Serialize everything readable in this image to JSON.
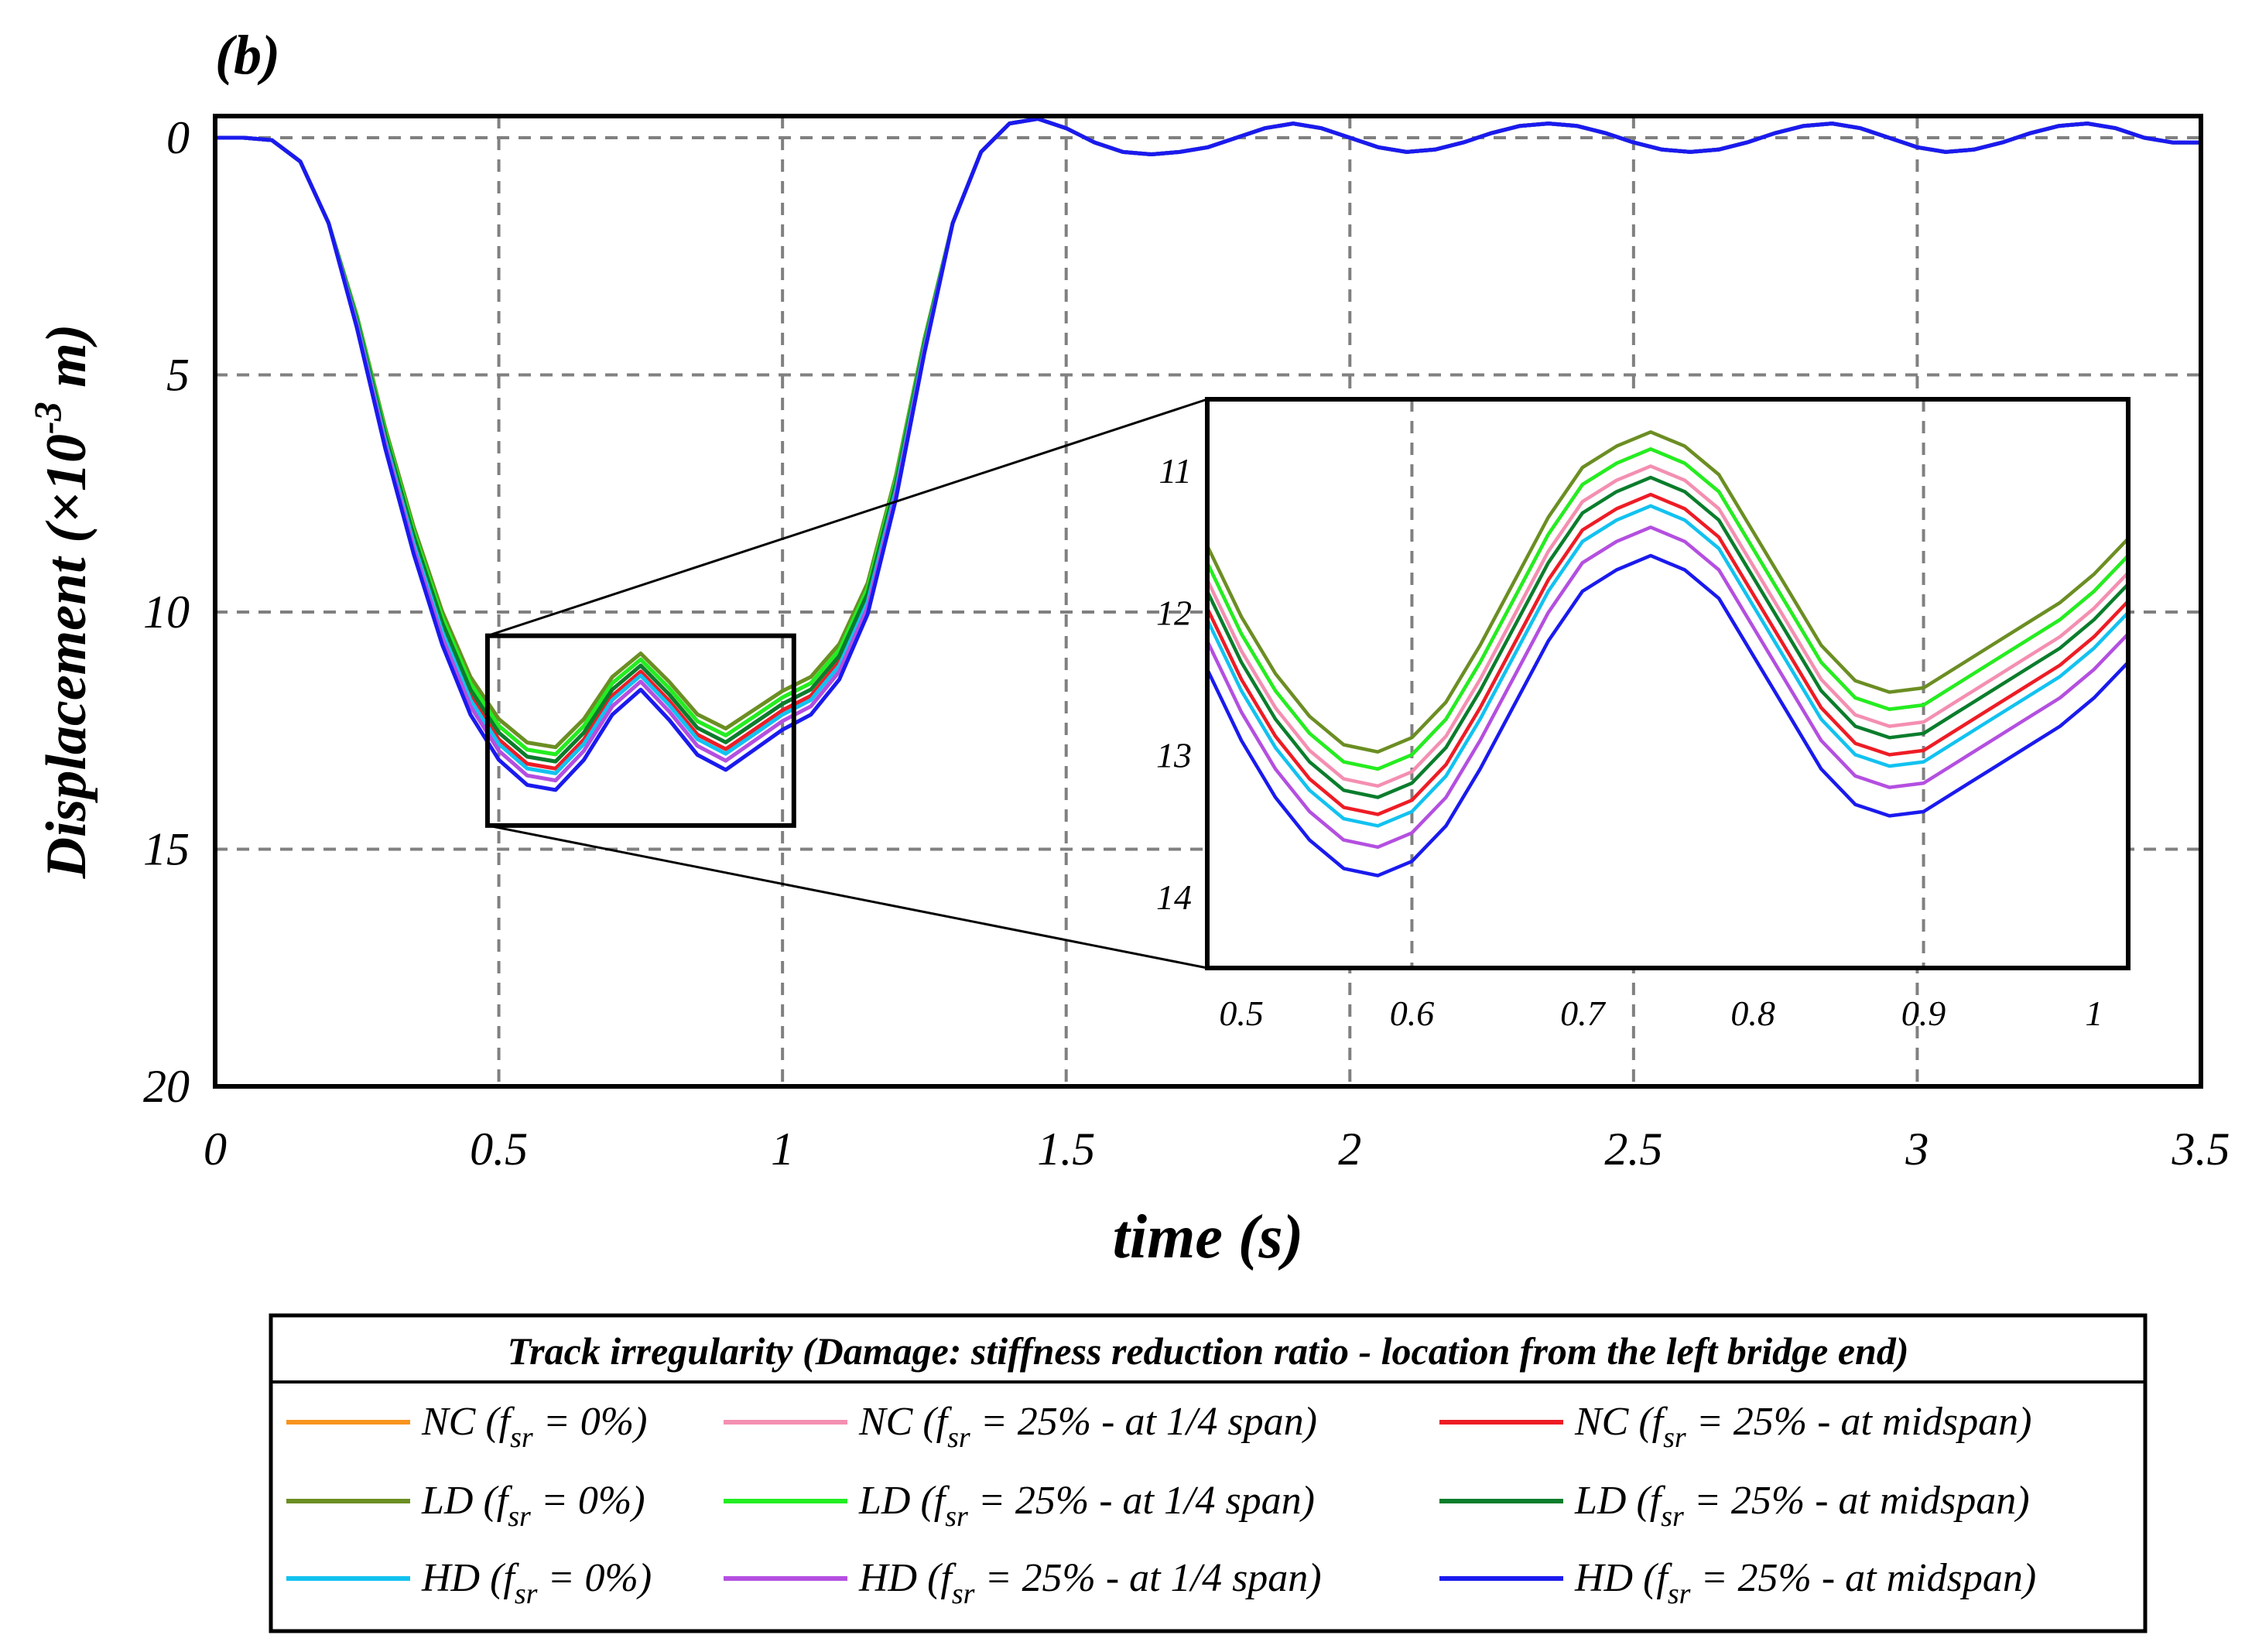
{
  "panel_label": "(b)",
  "chart_data": {
    "type": "line",
    "title": "",
    "xlabel": "time (s)",
    "ylabel": "Displacement (×10",
    "ylabel_exp": "-3",
    "ylabel_unit": " m)",
    "xlim": [
      0,
      3.5
    ],
    "ylim": [
      0,
      20
    ],
    "y_inverted": true,
    "grid": true,
    "x_ticks": [
      "0",
      "0.5",
      "1",
      "1.5",
      "2",
      "2.5",
      "3",
      "3.5"
    ],
    "y_ticks": [
      "0",
      "5",
      "10",
      "15",
      "20"
    ],
    "base_curve": {
      "x": [
        0,
        0.05,
        0.1,
        0.15,
        0.2,
        0.25,
        0.3,
        0.35,
        0.4,
        0.45,
        0.5,
        0.55,
        0.6,
        0.65,
        0.7,
        0.75,
        0.8,
        0.85,
        0.9,
        0.95,
        1.0,
        1.05,
        1.1,
        1.15,
        1.2,
        1.25,
        1.3,
        1.35,
        1.4,
        1.45,
        1.5,
        1.55,
        1.6,
        1.65,
        1.7,
        1.75,
        1.8,
        1.85,
        1.9,
        1.95,
        2.0,
        2.05,
        2.1,
        2.15,
        2.2,
        2.25,
        2.3,
        2.35,
        2.4,
        2.45,
        2.5,
        2.55,
        2.6,
        2.65,
        2.7,
        2.75,
        2.8,
        2.85,
        2.9,
        2.95,
        3.0,
        3.05,
        3.1,
        3.15,
        3.2,
        3.25,
        3.3,
        3.35,
        3.4,
        3.45,
        3.5
      ],
      "y": [
        0,
        0,
        0.05,
        0.5,
        1.8,
        3.8,
        6.2,
        8.3,
        10.1,
        11.5,
        12.4,
        12.9,
        13.0,
        12.4,
        11.5,
        11.0,
        11.6,
        12.3,
        12.6,
        12.2,
        11.8,
        11.5,
        10.8,
        9.5,
        7.2,
        4.3,
        1.8,
        0.3,
        -0.3,
        -0.4,
        -0.2,
        0.1,
        0.3,
        0.35,
        0.3,
        0.2,
        0.0,
        -0.2,
        -0.3,
        -0.2,
        0.0,
        0.2,
        0.3,
        0.25,
        0.1,
        -0.1,
        -0.25,
        -0.3,
        -0.25,
        -0.1,
        0.1,
        0.25,
        0.3,
        0.25,
        0.1,
        -0.1,
        -0.25,
        -0.3,
        -0.2,
        0.0,
        0.2,
        0.3,
        0.25,
        0.1,
        -0.1,
        -0.25,
        -0.3,
        -0.2,
        0.0,
        0.1,
        0.1
      ]
    },
    "series": [
      {
        "name": "NC (f",
        "sub": "sr",
        "suffix": " = 0%)",
        "color": "#f7941d",
        "offset": 0.0
      },
      {
        "name": "NC (f",
        "sub": "sr",
        "suffix": " = 25% - at 1/4 span)",
        "color": "#f48fb1",
        "offset": 0.15
      },
      {
        "name": "NC (f",
        "sub": "sr",
        "suffix": " = 25% - at midspan)",
        "color": "#ee1c25",
        "offset": 0.3
      },
      {
        "name": "LD (f",
        "sub": "sr",
        "suffix": " = 0%)",
        "color": "#6b8e23",
        "offset": -0.15
      },
      {
        "name": "LD (f",
        "sub": "sr",
        "suffix": " = 25% - at 1/4 span)",
        "color": "#22ee22",
        "offset": 0.0
      },
      {
        "name": "LD (f",
        "sub": "sr",
        "suffix": " = 25% - at midspan)",
        "color": "#0a7d2c",
        "offset": 0.15
      },
      {
        "name": "HD (f",
        "sub": "sr",
        "suffix": " = 0%)",
        "color": "#12c2f0",
        "offset": 0.4
      },
      {
        "name": "HD (f",
        "sub": "sr",
        "suffix": " = 25% - at 1/4 span)",
        "color": "#b44fe0",
        "offset": 0.55
      },
      {
        "name": "HD (f",
        "sub": "sr",
        "suffix": " = 25% - at midspan)",
        "color": "#1a1aee",
        "offset": 0.75
      }
    ],
    "zoom_box": {
      "x": [
        0.48,
        1.02
      ],
      "y": [
        10.5,
        14.5
      ]
    },
    "inset": {
      "xlim": [
        0.48,
        1.02
      ],
      "ylim": [
        10.5,
        14.5
      ],
      "x_ticks": [
        "0.5",
        "0.6",
        "0.7",
        "0.8",
        "0.9",
        "1"
      ],
      "y_ticks": [
        "11",
        "12",
        "13",
        "14"
      ],
      "base_curve": {
        "x": [
          0.48,
          0.5,
          0.52,
          0.54,
          0.56,
          0.58,
          0.6,
          0.62,
          0.64,
          0.66,
          0.68,
          0.7,
          0.72,
          0.74,
          0.76,
          0.78,
          0.8,
          0.82,
          0.84,
          0.86,
          0.88,
          0.9,
          0.92,
          0.94,
          0.96,
          0.98,
          1.0,
          1.02
        ],
        "y": [
          11.65,
          12.15,
          12.55,
          12.85,
          13.05,
          13.1,
          13.0,
          12.75,
          12.35,
          11.9,
          11.45,
          11.1,
          10.95,
          10.85,
          10.95,
          11.15,
          11.55,
          11.95,
          12.35,
          12.6,
          12.68,
          12.65,
          12.5,
          12.35,
          12.2,
          12.05,
          11.85,
          11.6
        ]
      },
      "offsets": [
        0.0,
        0.12,
        0.32,
        -0.12,
        0.0,
        0.2,
        0.4,
        0.55,
        0.75
      ]
    },
    "legend": {
      "title": "Track irregularity (Damage: stiffness reduction ratio - location from the left bridge end)",
      "position": "bottom-center",
      "columns": 3
    }
  }
}
